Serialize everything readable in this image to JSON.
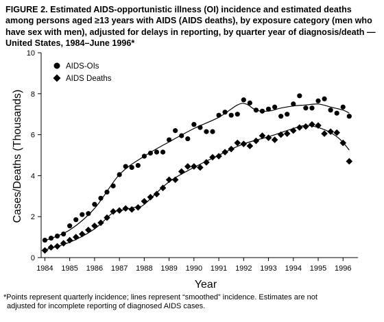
{
  "title": "FIGURE 2. Estimated AIDS-opportunistic illness (OI) incidence and estimated deaths among persons aged ≥13 years with AIDS (AIDS deaths), by exposure category (men who have sex with men), adjusted for delays in reporting, by quarter year of diagnosis/death — United States, 1984–June 1996*",
  "footnote": {
    "line1": "*Points represent quarterly incidence; lines represent “smoothed” incidence. Estimates are not",
    "line2": "adjusted for incomplete reporting of diagnosed AIDS cases."
  },
  "chart_data": {
    "type": "scatter",
    "xlabel": "Year",
    "ylabel": "Cases/Deaths (Thousands)",
    "xlim": [
      1983.85,
      1996.6
    ],
    "ylim": [
      0,
      10
    ],
    "x_ticks": [
      "1984",
      "1985",
      "1986",
      "1987",
      "1988",
      "1989",
      "1990",
      "1991",
      "1992",
      "1993",
      "1994",
      "1995",
      "1996"
    ],
    "y_ticks": [
      "0",
      "2",
      "4",
      "6",
      "8",
      "10"
    ],
    "legend_position": "top-left",
    "series": [
      {
        "name": "AIDS-OIs",
        "marker": "circle",
        "x_start": 1984.0,
        "x_step": 0.25,
        "values": [
          0.85,
          0.95,
          1.05,
          1.15,
          1.55,
          1.85,
          2.1,
          2.15,
          2.6,
          2.9,
          3.2,
          3.5,
          4.05,
          4.45,
          4.4,
          4.5,
          4.95,
          5.1,
          5.15,
          5.15,
          5.75,
          6.2,
          5.95,
          5.8,
          6.5,
          6.35,
          6.15,
          6.15,
          6.95,
          7.1,
          6.95,
          7.0,
          7.7,
          7.55,
          7.2,
          7.15,
          7.25,
          7.35,
          6.9,
          7.0,
          7.5,
          7.9,
          7.3,
          7.3,
          7.65,
          7.75,
          7.2,
          7.05,
          7.35,
          6.9
        ],
        "smooth": [
          [
            1984.0,
            0.82
          ],
          [
            1985.0,
            1.35
          ],
          [
            1986.0,
            2.4
          ],
          [
            1987.0,
            4.05
          ],
          [
            1988.0,
            4.95
          ],
          [
            1989.0,
            5.65
          ],
          [
            1990.0,
            6.3
          ],
          [
            1991.0,
            6.85
          ],
          [
            1991.75,
            7.45
          ],
          [
            1992.1,
            7.5
          ],
          [
            1992.5,
            7.2
          ],
          [
            1993.0,
            7.15
          ],
          [
            1993.5,
            7.3
          ],
          [
            1994.0,
            7.4
          ],
          [
            1994.5,
            7.45
          ],
          [
            1995.0,
            7.5
          ],
          [
            1995.5,
            7.35
          ],
          [
            1996.0,
            7.2
          ],
          [
            1996.25,
            7.05
          ]
        ]
      },
      {
        "name": "AIDS Deaths",
        "marker": "diamond",
        "x_start": 1984.0,
        "x_step": 0.25,
        "values": [
          0.35,
          0.5,
          0.55,
          0.7,
          0.85,
          1.0,
          1.15,
          1.35,
          1.55,
          1.7,
          1.95,
          2.25,
          2.3,
          2.4,
          2.35,
          2.45,
          2.75,
          2.95,
          3.1,
          3.4,
          3.8,
          3.8,
          4.2,
          4.45,
          4.45,
          4.4,
          4.65,
          4.9,
          4.95,
          5.15,
          5.3,
          5.6,
          5.55,
          5.45,
          5.7,
          5.95,
          5.85,
          5.75,
          6.0,
          6.05,
          6.2,
          6.35,
          6.4,
          6.5,
          6.45,
          6.05,
          6.15,
          6.1,
          5.6,
          4.7
        ],
        "smooth": [
          [
            1984.0,
            0.38
          ],
          [
            1985.0,
            0.75
          ],
          [
            1986.0,
            1.4
          ],
          [
            1986.75,
            2.2
          ],
          [
            1987.25,
            2.35
          ],
          [
            1987.75,
            2.5
          ],
          [
            1988.0,
            2.6
          ],
          [
            1989.0,
            3.7
          ],
          [
            1990.0,
            4.4
          ],
          [
            1991.0,
            5.0
          ],
          [
            1992.0,
            5.55
          ],
          [
            1993.0,
            5.9
          ],
          [
            1994.0,
            6.3
          ],
          [
            1994.5,
            6.45
          ],
          [
            1995.0,
            6.35
          ],
          [
            1995.5,
            6.1
          ],
          [
            1995.9,
            5.75
          ],
          [
            1996.25,
            5.25
          ]
        ]
      }
    ]
  }
}
